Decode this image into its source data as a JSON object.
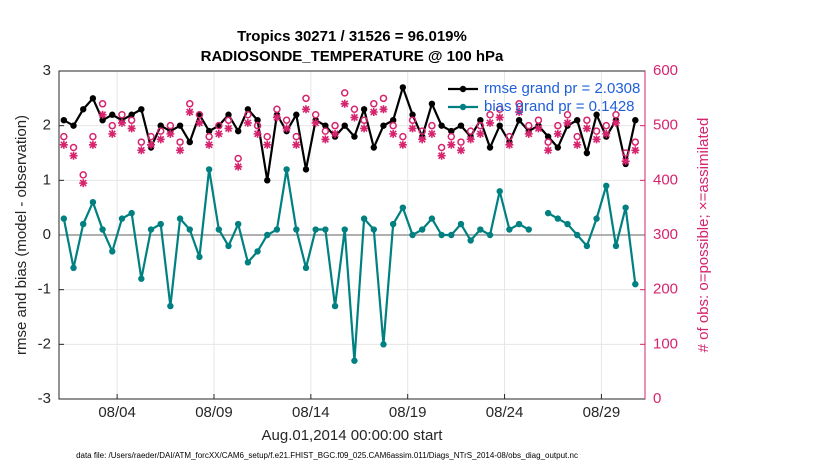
{
  "chart_data": {
    "type": "line",
    "title": "Tropics 30271 / 31526 = 96.019%",
    "subtitle": "RADIOSONDE_TEMPERATURE @ 100 hPa",
    "xlabel": "Aug.01,2014 00:00:00 start",
    "ylabel": "rmse and bias (model - observation)",
    "y2label": "# of obs: o=possible; ×=assimilated",
    "footnote": "data file: /Users/raeder/DAI/ATM_forcXX/CAM6_setup/f.e21.FHIST_BGC.f09_025.CAM6assim.011/Diags_NTrS_2014-08/obs_diag_output.nc",
    "legend": "upper right",
    "grid": true,
    "xlim": [
      0,
      30.25
    ],
    "xticks": [
      {
        "value": 3,
        "label": "08/04"
      },
      {
        "value": 8,
        "label": "08/09"
      },
      {
        "value": 13,
        "label": "08/14"
      },
      {
        "value": 18,
        "label": "08/19"
      },
      {
        "value": 23,
        "label": "08/24"
      },
      {
        "value": 28,
        "label": "08/29"
      }
    ],
    "ylim": [
      -3,
      3
    ],
    "yticks": [
      -3,
      -2,
      -1,
      0,
      1,
      2,
      3
    ],
    "y2lim": [
      0,
      600
    ],
    "y2ticks": [
      0,
      100,
      200,
      300,
      400,
      500,
      600
    ],
    "x": [
      0.25,
      0.75,
      1.25,
      1.75,
      2.25,
      2.75,
      3.25,
      3.75,
      4.25,
      4.75,
      5.25,
      5.75,
      6.25,
      6.75,
      7.25,
      7.75,
      8.25,
      8.75,
      9.25,
      9.75,
      10.25,
      10.75,
      11.25,
      11.75,
      12.25,
      12.75,
      13.25,
      13.75,
      14.25,
      14.75,
      15.25,
      15.75,
      16.25,
      16.75,
      17.25,
      17.75,
      18.25,
      18.75,
      19.25,
      19.75,
      20.25,
      20.75,
      21.25,
      21.75,
      22.25,
      22.75,
      23.25,
      23.75,
      24.25,
      24.75,
      25.25,
      25.75,
      26.25,
      26.75,
      27.25,
      27.75,
      28.25,
      28.75,
      29.25,
      29.75
    ],
    "series": [
      {
        "name": "rmse grand pr = 2.0308",
        "color": "#000000",
        "marker": "dot",
        "values": [
          2.1,
          2.0,
          2.3,
          2.5,
          2.1,
          2.2,
          2.1,
          2.2,
          2.3,
          1.6,
          2.0,
          1.9,
          2.0,
          1.7,
          2.2,
          1.9,
          2.0,
          2.2,
          1.9,
          2.3,
          2.1,
          1.0,
          2.2,
          1.9,
          2.2,
          1.2,
          2.1,
          2.0,
          1.8,
          2.0,
          1.8,
          2.3,
          1.6,
          2.0,
          2.1,
          2.7,
          2.2,
          1.8,
          2.4,
          2.0,
          1.9,
          2.0,
          1.8,
          2.1,
          1.6,
          2.0,
          1.7,
          2.1,
          1.9,
          2.0,
          1.8,
          1.6,
          2.0,
          2.1,
          1.5,
          2.2,
          1.8,
          2.1,
          1.3,
          2.1
        ]
      },
      {
        "name": "bias grand pr = 0.1428",
        "color": "#008080",
        "marker": "dot",
        "values": [
          0.3,
          -0.6,
          0.2,
          0.6,
          0.1,
          -0.3,
          0.3,
          0.4,
          -0.8,
          0.1,
          0.2,
          -1.3,
          0.3,
          0.1,
          -0.4,
          1.2,
          0.1,
          -0.2,
          0.2,
          -0.5,
          -0.3,
          0.0,
          0.1,
          1.2,
          0.1,
          -0.6,
          0.1,
          0.1,
          -1.3,
          0.1,
          -2.3,
          0.3,
          0.1,
          -2.0,
          0.2,
          0.5,
          0.0,
          0.1,
          0.3,
          0.0,
          0.0,
          0.2,
          -0.1,
          0.1,
          0.0,
          0.8,
          0.1,
          0.2,
          0.1,
          null,
          0.4,
          0.3,
          0.2,
          0.0,
          -0.2,
          0.3,
          0.9,
          -0.2,
          0.5,
          -0.9
        ]
      },
      {
        "color": "#d6246e",
        "marker": "circle",
        "axis": "y2",
        "values": [
          480,
          460,
          410,
          480,
          540,
          500,
          520,
          510,
          470,
          480,
          490,
          500,
          470,
          540,
          520,
          480,
          500,
          510,
          440,
          520,
          500,
          480,
          530,
          510,
          480,
          550,
          520,
          490,
          500,
          560,
          530,
          510,
          540,
          550,
          500,
          480,
          510,
          490,
          500,
          460,
          480,
          470,
          490,
          500,
          520,
          530,
          480,
          540,
          500,
          510,
          470,
          500,
          520,
          480,
          510,
          490,
          500,
          520,
          450,
          470
        ]
      },
      {
        "color": "#d6246e",
        "marker": "star",
        "axis": "y2",
        "values": [
          465,
          445,
          395,
          465,
          520,
          485,
          505,
          495,
          455,
          465,
          475,
          485,
          455,
          525,
          505,
          465,
          485,
          495,
          425,
          505,
          485,
          465,
          515,
          495,
          465,
          530,
          505,
          475,
          485,
          540,
          515,
          495,
          525,
          530,
          485,
          465,
          495,
          475,
          485,
          445,
          465,
          455,
          475,
          485,
          505,
          515,
          465,
          525,
          485,
          495,
          455,
          485,
          505,
          465,
          495,
          475,
          485,
          505,
          435,
          455
        ]
      }
    ]
  }
}
